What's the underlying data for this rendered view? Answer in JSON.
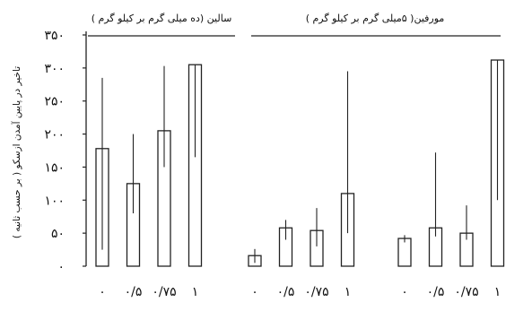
{
  "chart_data": {
    "type": "bar",
    "ylabel": "تاخیر در پایین آمدن ازسکو ( بر حسب ثانیه )",
    "ylim": [
      0,
      350
    ],
    "yticks": [
      {
        "value": 0,
        "label": "۰"
      },
      {
        "value": 50,
        "label": "۵۰"
      },
      {
        "value": 100,
        "label": "۱۰۰"
      },
      {
        "value": 150,
        "label": "۱۵۰"
      },
      {
        "value": 200,
        "label": "۲۰۰"
      },
      {
        "value": 250,
        "label": "۲۵۰"
      },
      {
        "value": 300,
        "label": "۳۰۰"
      },
      {
        "value": 350,
        "label": "۳۵۰"
      }
    ],
    "grid": false,
    "groups": [
      {
        "title": "سالین (ده میلی گرم بر کیلو گرم )",
        "categories": [
          "۰",
          "۰/۵",
          "۰/۷۵",
          "۱"
        ],
        "values": [
          178,
          125,
          205,
          305
        ],
        "err_low": [
          25,
          80,
          150,
          165
        ],
        "err_high": [
          285,
          200,
          303,
          305
        ]
      },
      {
        "title": "مورفین( ۵میلی گرم بر کیلو گرم )",
        "categories": [
          "۰",
          "۰/۵",
          "۰/۷۵",
          "۱"
        ],
        "values": [
          16,
          58,
          54,
          110
        ],
        "err_low": [
          5,
          40,
          30,
          50
        ],
        "err_high": [
          26,
          70,
          88,
          295
        ]
      },
      {
        "title": "",
        "categories": [
          "۰",
          "۰/۵",
          "۰/۷۵",
          "۱"
        ],
        "values": [
          42,
          58,
          50,
          312
        ],
        "err_low": [
          36,
          45,
          40,
          100
        ],
        "err_high": [
          47,
          172,
          92,
          312
        ]
      }
    ]
  }
}
